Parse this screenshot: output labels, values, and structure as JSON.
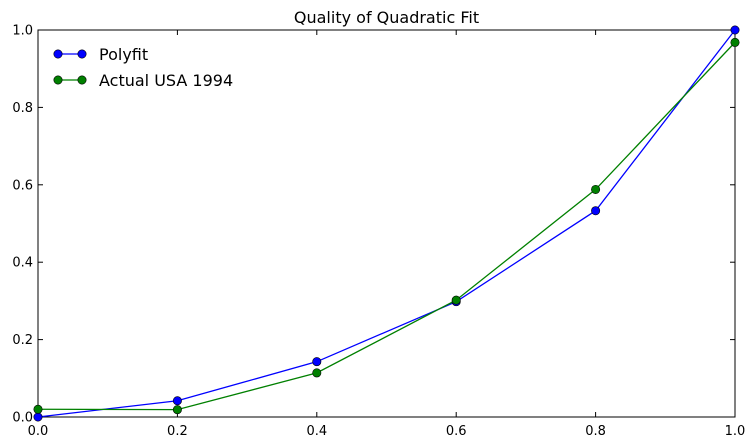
{
  "chart_data": {
    "type": "line",
    "title": "Quality of Quadratic Fit",
    "xlabel": "",
    "ylabel": "",
    "xlim": [
      0.0,
      1.0
    ],
    "ylim": [
      0.0,
      1.0
    ],
    "x_ticks": [
      "0.0",
      "0.2",
      "0.4",
      "0.6",
      "0.8",
      "1.0"
    ],
    "y_ticks": [
      "0.0",
      "0.2",
      "0.4",
      "0.6",
      "0.8",
      "1.0"
    ],
    "grid": false,
    "legend": "top-left",
    "x": [
      0.0,
      0.2,
      0.4,
      0.6,
      0.8,
      1.0
    ],
    "series": [
      {
        "name": "Polyfit",
        "color": "#0000ff",
        "values": [
          0.0,
          0.042,
          0.143,
          0.298,
          0.533,
          1.0
        ]
      },
      {
        "name": "Actual USA 1994",
        "color": "#008000",
        "values": [
          0.02,
          0.019,
          0.114,
          0.302,
          0.588,
          0.968
        ]
      }
    ]
  }
}
